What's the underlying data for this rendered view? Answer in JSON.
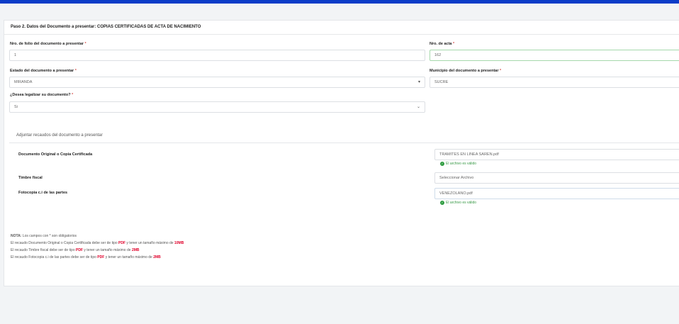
{
  "header": {
    "title": "Paso 2. Datos del Documento a presentar: COPIAS CERTIFICADAS DE ACTA DE NACIMIENTO"
  },
  "fields": {
    "folio": {
      "label": "Nro. de folio del documento a presentar",
      "value": "1"
    },
    "acta": {
      "label": "Nro. de acta",
      "value": "162"
    },
    "estado": {
      "label": "Estado del documento a presentar",
      "value": "MIRANDA"
    },
    "municipio": {
      "label": "Municipio del documento a presentar",
      "value": "SUCRE"
    },
    "legalizar": {
      "label": "¿Desea legalizar su documento?",
      "value": "Si"
    }
  },
  "required_mark": "*",
  "attachments": {
    "title": "Adjuntar recaudos del documento a presentar",
    "items": [
      {
        "label": "Documento Original o Copia Certificada",
        "file": "TRAMITES EN LINEA SAREN.pdf",
        "status": "El archivo es válido"
      },
      {
        "label": "Timbre fiscal",
        "file": "Seleccionar Archivo",
        "status": ""
      },
      {
        "label": "Fotocopia c.i de las partes",
        "file": "VENEZOLANO.pdf",
        "status": "El archivo es válido"
      }
    ]
  },
  "notes": {
    "lead": "NOTA:",
    "intro": "Los campos con * son obligatorios",
    "lines": [
      {
        "text": "El recaudo Documento Original o Copia Certificada debe ser de tipo",
        "type": "PDF",
        "mid": "y tener un tamaño máximo de",
        "size": "10MB"
      },
      {
        "text": "El recaudo Timbre fiscal debe ser de tipo",
        "type": "PDF",
        "mid": "y tener un tamaño máximo de",
        "size": "2MB"
      },
      {
        "text": "El recaudo Fotocopia c.i de las partes debe ser de tipo",
        "type": "PDF",
        "mid": "y tener un tamaño máximo de",
        "size": "2MB"
      }
    ]
  },
  "colors": {
    "topbar": "#0a3cc8",
    "valid": "#2e9c40",
    "highlight": "#e0002a"
  }
}
